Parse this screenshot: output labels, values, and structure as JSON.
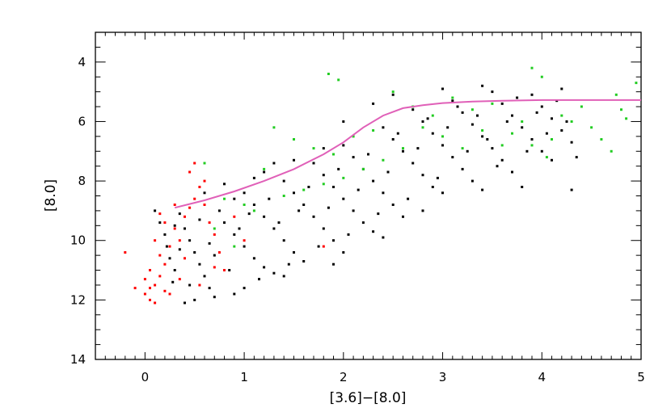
{
  "chart_data": {
    "type": "scatter",
    "title": "",
    "xlabel": "[3.6]−[8.0]",
    "ylabel": "[8.0]",
    "xlim": [
      -0.5,
      5
    ],
    "ylim": [
      14,
      3
    ],
    "y_inverted": true,
    "grid": false,
    "xticks": [
      "0",
      "1",
      "2",
      "3",
      "4",
      "5"
    ],
    "yticks": [
      "4",
      "6",
      "8",
      "10",
      "12",
      "14"
    ],
    "colors": {
      "black": "#000000",
      "red": "#ff0000",
      "green": "#22cc22",
      "curve": "#e060b8"
    },
    "black_points": [
      [
        0.1,
        9.0
      ],
      [
        0.15,
        9.4
      ],
      [
        0.2,
        9.8
      ],
      [
        0.22,
        10.2
      ],
      [
        0.25,
        10.6
      ],
      [
        0.3,
        11.0
      ],
      [
        0.28,
        11.4
      ],
      [
        0.35,
        9.1
      ],
      [
        0.4,
        9.6
      ],
      [
        0.45,
        10.0
      ],
      [
        0.5,
        10.4
      ],
      [
        0.55,
        10.8
      ],
      [
        0.6,
        11.2
      ],
      [
        0.65,
        11.6
      ],
      [
        0.7,
        11.9
      ],
      [
        0.5,
        12.0
      ],
      [
        0.4,
        12.1
      ],
      [
        0.75,
        9.0
      ],
      [
        0.8,
        9.4
      ],
      [
        0.9,
        9.8
      ],
      [
        1.0,
        10.2
      ],
      [
        1.1,
        10.6
      ],
      [
        1.2,
        10.9
      ],
      [
        1.3,
        11.1
      ],
      [
        1.0,
        8.4
      ],
      [
        1.1,
        8.8
      ],
      [
        1.2,
        9.2
      ],
      [
        1.3,
        9.6
      ],
      [
        1.4,
        10.0
      ],
      [
        1.5,
        10.4
      ],
      [
        1.6,
        10.7
      ],
      [
        1.4,
        8.0
      ],
      [
        1.5,
        8.4
      ],
      [
        1.6,
        8.8
      ],
      [
        1.7,
        9.2
      ],
      [
        1.8,
        9.6
      ],
      [
        1.9,
        10.0
      ],
      [
        2.0,
        10.4
      ],
      [
        1.7,
        7.4
      ],
      [
        1.8,
        7.8
      ],
      [
        1.9,
        8.2
      ],
      [
        2.0,
        8.6
      ],
      [
        2.1,
        9.0
      ],
      [
        2.2,
        9.4
      ],
      [
        2.3,
        9.7
      ],
      [
        2.0,
        6.8
      ],
      [
        2.1,
        7.2
      ],
      [
        2.2,
        7.6
      ],
      [
        2.3,
        8.0
      ],
      [
        2.4,
        8.4
      ],
      [
        2.5,
        8.8
      ],
      [
        2.6,
        9.2
      ],
      [
        2.4,
        6.2
      ],
      [
        2.5,
        6.6
      ],
      [
        2.6,
        7.0
      ],
      [
        2.7,
        7.4
      ],
      [
        2.8,
        7.8
      ],
      [
        2.9,
        8.2
      ],
      [
        3.0,
        8.4
      ],
      [
        2.7,
        5.6
      ],
      [
        2.8,
        6.0
      ],
      [
        2.9,
        6.4
      ],
      [
        3.0,
        6.8
      ],
      [
        3.1,
        7.2
      ],
      [
        3.2,
        7.6
      ],
      [
        3.3,
        8.0
      ],
      [
        3.1,
        5.3
      ],
      [
        3.2,
        5.7
      ],
      [
        3.3,
        6.1
      ],
      [
        3.4,
        6.5
      ],
      [
        3.5,
        6.9
      ],
      [
        3.6,
        7.3
      ],
      [
        3.7,
        7.7
      ],
      [
        3.5,
        5.0
      ],
      [
        3.6,
        5.4
      ],
      [
        3.7,
        5.8
      ],
      [
        3.8,
        6.2
      ],
      [
        3.9,
        6.6
      ],
      [
        4.0,
        7.0
      ],
      [
        4.1,
        7.3
      ],
      [
        3.9,
        5.1
      ],
      [
        4.0,
        5.5
      ],
      [
        4.1,
        5.9
      ],
      [
        4.2,
        6.3
      ],
      [
        4.3,
        6.7
      ],
      [
        4.35,
        7.2
      ],
      [
        4.3,
        8.3
      ],
      [
        0.6,
        8.4
      ],
      [
        0.8,
        8.1
      ],
      [
        1.2,
        7.7
      ],
      [
        1.5,
        7.3
      ],
      [
        2.0,
        6.0
      ],
      [
        2.3,
        5.4
      ],
      [
        2.5,
        5.1
      ],
      [
        3.0,
        4.9
      ],
      [
        3.4,
        4.8
      ],
      [
        4.2,
        4.9
      ],
      [
        0.3,
        9.5
      ],
      [
        0.35,
        10.3
      ],
      [
        0.45,
        11.5
      ],
      [
        0.55,
        9.3
      ],
      [
        0.65,
        10.1
      ],
      [
        0.7,
        10.5
      ],
      [
        0.85,
        11.0
      ],
      [
        0.95,
        9.6
      ],
      [
        1.05,
        9.1
      ],
      [
        1.15,
        11.3
      ],
      [
        1.25,
        8.6
      ],
      [
        1.35,
        9.4
      ],
      [
        1.45,
        10.8
      ],
      [
        1.55,
        9.0
      ],
      [
        1.65,
        8.2
      ],
      [
        1.75,
        10.2
      ],
      [
        1.85,
        8.9
      ],
      [
        1.95,
        7.6
      ],
      [
        2.05,
        9.8
      ],
      [
        2.15,
        8.3
      ],
      [
        2.25,
        7.1
      ],
      [
        2.35,
        9.1
      ],
      [
        2.45,
        7.7
      ],
      [
        2.55,
        6.4
      ],
      [
        2.65,
        8.6
      ],
      [
        2.75,
        6.9
      ],
      [
        2.85,
        5.9
      ],
      [
        2.95,
        7.9
      ],
      [
        3.05,
        6.2
      ],
      [
        3.15,
        5.5
      ],
      [
        3.25,
        7.0
      ],
      [
        3.35,
        5.8
      ],
      [
        3.45,
        6.6
      ],
      [
        3.55,
        7.5
      ],
      [
        3.65,
        6.0
      ],
      [
        3.75,
        5.2
      ],
      [
        3.85,
        7.0
      ],
      [
        3.95,
        5.7
      ],
      [
        4.05,
        6.4
      ],
      [
        4.15,
        5.3
      ],
      [
        4.25,
        6.0
      ],
      [
        1.0,
        11.6
      ],
      [
        0.9,
        11.8
      ],
      [
        1.4,
        11.2
      ],
      [
        1.9,
        10.8
      ],
      [
        2.4,
        9.9
      ],
      [
        2.8,
        9.0
      ],
      [
        3.4,
        8.3
      ],
      [
        3.8,
        8.2
      ],
      [
        1.1,
        7.9
      ],
      [
        0.9,
        8.6
      ],
      [
        1.3,
        7.4
      ],
      [
        1.8,
        6.9
      ]
    ],
    "red_points": [
      [
        -0.2,
        10.4
      ],
      [
        -0.1,
        11.6
      ],
      [
        0.0,
        11.8
      ],
      [
        0.05,
        12.0
      ],
      [
        0.1,
        11.5
      ],
      [
        0.15,
        11.2
      ],
      [
        0.2,
        11.7
      ],
      [
        0.0,
        11.3
      ],
      [
        0.1,
        12.1
      ],
      [
        0.05,
        11.0
      ],
      [
        0.2,
        10.8
      ],
      [
        0.25,
        10.2
      ],
      [
        0.3,
        9.6
      ],
      [
        0.35,
        10.0
      ],
      [
        0.4,
        9.2
      ],
      [
        0.45,
        8.9
      ],
      [
        0.5,
        8.6
      ],
      [
        0.55,
        8.2
      ],
      [
        0.6,
        8.8
      ],
      [
        0.65,
        9.4
      ],
      [
        0.7,
        9.8
      ],
      [
        0.75,
        10.4
      ],
      [
        0.8,
        11.0
      ],
      [
        0.35,
        11.3
      ],
      [
        0.4,
        10.6
      ],
      [
        0.25,
        11.8
      ],
      [
        0.15,
        10.5
      ],
      [
        0.1,
        10.0
      ],
      [
        0.3,
        8.8
      ],
      [
        0.5,
        7.4
      ],
      [
        0.45,
        7.7
      ],
      [
        0.6,
        8.0
      ],
      [
        0.2,
        9.4
      ],
      [
        0.15,
        9.1
      ],
      [
        0.7,
        10.9
      ],
      [
        0.55,
        11.5
      ],
      [
        0.05,
        11.6
      ],
      [
        1.8,
        10.2
      ],
      [
        1.0,
        10.0
      ],
      [
        0.9,
        9.2
      ]
    ],
    "green_points": [
      [
        1.85,
        4.4
      ],
      [
        1.95,
        4.6
      ],
      [
        3.9,
        4.2
      ],
      [
        4.0,
        4.5
      ],
      [
        4.95,
        4.7
      ],
      [
        4.8,
        5.6
      ],
      [
        4.75,
        5.1
      ],
      [
        4.85,
        5.9
      ],
      [
        4.5,
        6.2
      ],
      [
        4.6,
        6.6
      ],
      [
        4.7,
        7.0
      ],
      [
        4.4,
        5.5
      ],
      [
        4.3,
        6.0
      ],
      [
        4.2,
        5.8
      ],
      [
        4.1,
        6.6
      ],
      [
        3.8,
        6.0
      ],
      [
        3.6,
        6.8
      ],
      [
        3.4,
        6.3
      ],
      [
        3.2,
        6.9
      ],
      [
        3.0,
        6.5
      ],
      [
        2.8,
        6.2
      ],
      [
        2.6,
        6.9
      ],
      [
        2.4,
        7.3
      ],
      [
        2.2,
        7.6
      ],
      [
        2.0,
        7.9
      ],
      [
        1.8,
        8.1
      ],
      [
        1.6,
        8.3
      ],
      [
        1.4,
        8.5
      ],
      [
        1.2,
        7.6
      ],
      [
        1.0,
        8.8
      ],
      [
        2.7,
        5.5
      ],
      [
        2.9,
        5.8
      ],
      [
        3.1,
        5.2
      ],
      [
        3.3,
        5.6
      ],
      [
        3.5,
        5.4
      ],
      [
        3.7,
        6.4
      ],
      [
        3.9,
        6.8
      ],
      [
        4.05,
        7.2
      ],
      [
        1.3,
        6.2
      ],
      [
        1.5,
        6.6
      ],
      [
        1.7,
        6.9
      ],
      [
        2.5,
        5.0
      ],
      [
        2.3,
        6.3
      ],
      [
        1.9,
        7.1
      ],
      [
        2.1,
        6.5
      ],
      [
        0.6,
        7.4
      ],
      [
        0.8,
        8.6
      ],
      [
        0.7,
        9.6
      ],
      [
        0.9,
        10.2
      ],
      [
        1.1,
        9.0
      ]
    ],
    "curve": [
      [
        0.3,
        8.9
      ],
      [
        0.6,
        8.65
      ],
      [
        0.9,
        8.35
      ],
      [
        1.2,
        8.0
      ],
      [
        1.5,
        7.6
      ],
      [
        1.8,
        7.1
      ],
      [
        2.0,
        6.7
      ],
      [
        2.2,
        6.2
      ],
      [
        2.4,
        5.8
      ],
      [
        2.6,
        5.55
      ],
      [
        2.8,
        5.45
      ],
      [
        3.0,
        5.38
      ],
      [
        3.3,
        5.33
      ],
      [
        3.6,
        5.3
      ],
      [
        4.0,
        5.28
      ],
      [
        4.5,
        5.28
      ],
      [
        5.0,
        5.28
      ]
    ]
  }
}
